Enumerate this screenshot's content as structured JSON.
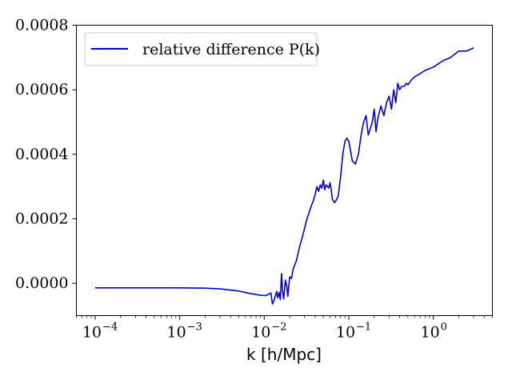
{
  "chart_data": {
    "type": "line",
    "xlabel": "k  [h/Mpc]",
    "ylabel": "",
    "xscale": "log",
    "xlim": [
      6e-05,
      5
    ],
    "ylim": [
      -0.0001,
      0.0008
    ],
    "grid": false,
    "legend": {
      "placement": "top-left",
      "entries": [
        "relative difference P(k)"
      ]
    },
    "x_ticks": [
      {
        "base": "10",
        "exp": "−4",
        "value": 0.0001
      },
      {
        "base": "10",
        "exp": "−3",
        "value": 0.001
      },
      {
        "base": "10",
        "exp": "−2",
        "value": 0.01
      },
      {
        "base": "10",
        "exp": "−1",
        "value": 0.1
      },
      {
        "base": "10",
        "exp": "0",
        "value": 1
      }
    ],
    "y_ticks": [
      {
        "label": "0.0000",
        "value": 0.0
      },
      {
        "label": "0.0002",
        "value": 0.0002
      },
      {
        "label": "0.0004",
        "value": 0.0004
      },
      {
        "label": "0.0006",
        "value": 0.0006
      },
      {
        "label": "0.0008",
        "value": 0.0008
      }
    ],
    "series": [
      {
        "name": "relative difference P(k)",
        "color": "#0000cc",
        "x": [
          0.0001,
          0.0003,
          0.001,
          0.002,
          0.003,
          0.005,
          0.007,
          0.009,
          0.0105,
          0.012,
          0.0125,
          0.0132,
          0.014,
          0.0145,
          0.015,
          0.0155,
          0.016,
          0.0165,
          0.017,
          0.0178,
          0.0185,
          0.019,
          0.02,
          0.021,
          0.022,
          0.024,
          0.026,
          0.028,
          0.03,
          0.032,
          0.034,
          0.036,
          0.038,
          0.04,
          0.042,
          0.044,
          0.046,
          0.048,
          0.05,
          0.052,
          0.054,
          0.056,
          0.058,
          0.06,
          0.062,
          0.064,
          0.066,
          0.068,
          0.07,
          0.075,
          0.08,
          0.085,
          0.09,
          0.095,
          0.1,
          0.105,
          0.11,
          0.12,
          0.13,
          0.14,
          0.15,
          0.16,
          0.17,
          0.18,
          0.19,
          0.2,
          0.21,
          0.22,
          0.24,
          0.26,
          0.28,
          0.3,
          0.32,
          0.34,
          0.36,
          0.38,
          0.4,
          0.42,
          0.45,
          0.48,
          0.5,
          0.55,
          0.6,
          0.7,
          0.8,
          1.0,
          1.3,
          1.6,
          2.0,
          2.5,
          3.0
        ],
        "y": [
          -1.4e-05,
          -1.4e-05,
          -1.4e-05,
          -1.5e-05,
          -1.7e-05,
          -2.4e-05,
          -3.2e-05,
          -3.7e-05,
          -3.8e-05,
          -3e-05,
          -6.4e-05,
          -5e-05,
          -2.5e-05,
          -4.5e-05,
          -2.8e-05,
          -5e-05,
          3e-05,
          -2.5e-05,
          -4.8e-05,
          1e-05,
          -1e-05,
          -4e-05,
          2e-05,
          1.5e-05,
          4.5e-05,
          7e-05,
          0.00011,
          0.00014,
          0.00017,
          0.0002,
          0.00022,
          0.00024,
          0.000255,
          0.000275,
          0.0003,
          0.000285,
          0.000305,
          0.000295,
          0.00032,
          0.00029,
          0.000305,
          0.0003,
          0.000295,
          0.000312,
          0.00029,
          0.00026,
          0.000255,
          0.00025,
          0.000255,
          0.00027,
          0.00033,
          0.0004,
          0.00044,
          0.00045,
          0.00044,
          0.00041,
          0.00038,
          0.00037,
          0.0004,
          0.00046,
          0.0005,
          0.00052,
          0.00046,
          0.00048,
          0.0005,
          0.00054,
          0.00047,
          0.00051,
          0.00055,
          0.00052,
          0.00056,
          0.00058,
          0.00054,
          0.0006,
          0.00056,
          0.00062,
          0.0006,
          0.00061,
          0.00061,
          0.00062,
          0.000615,
          0.00063,
          0.00064,
          0.00065,
          0.00066,
          0.00067,
          0.00069,
          0.0007,
          0.00072,
          0.00072,
          0.00073
        ]
      }
    ]
  }
}
